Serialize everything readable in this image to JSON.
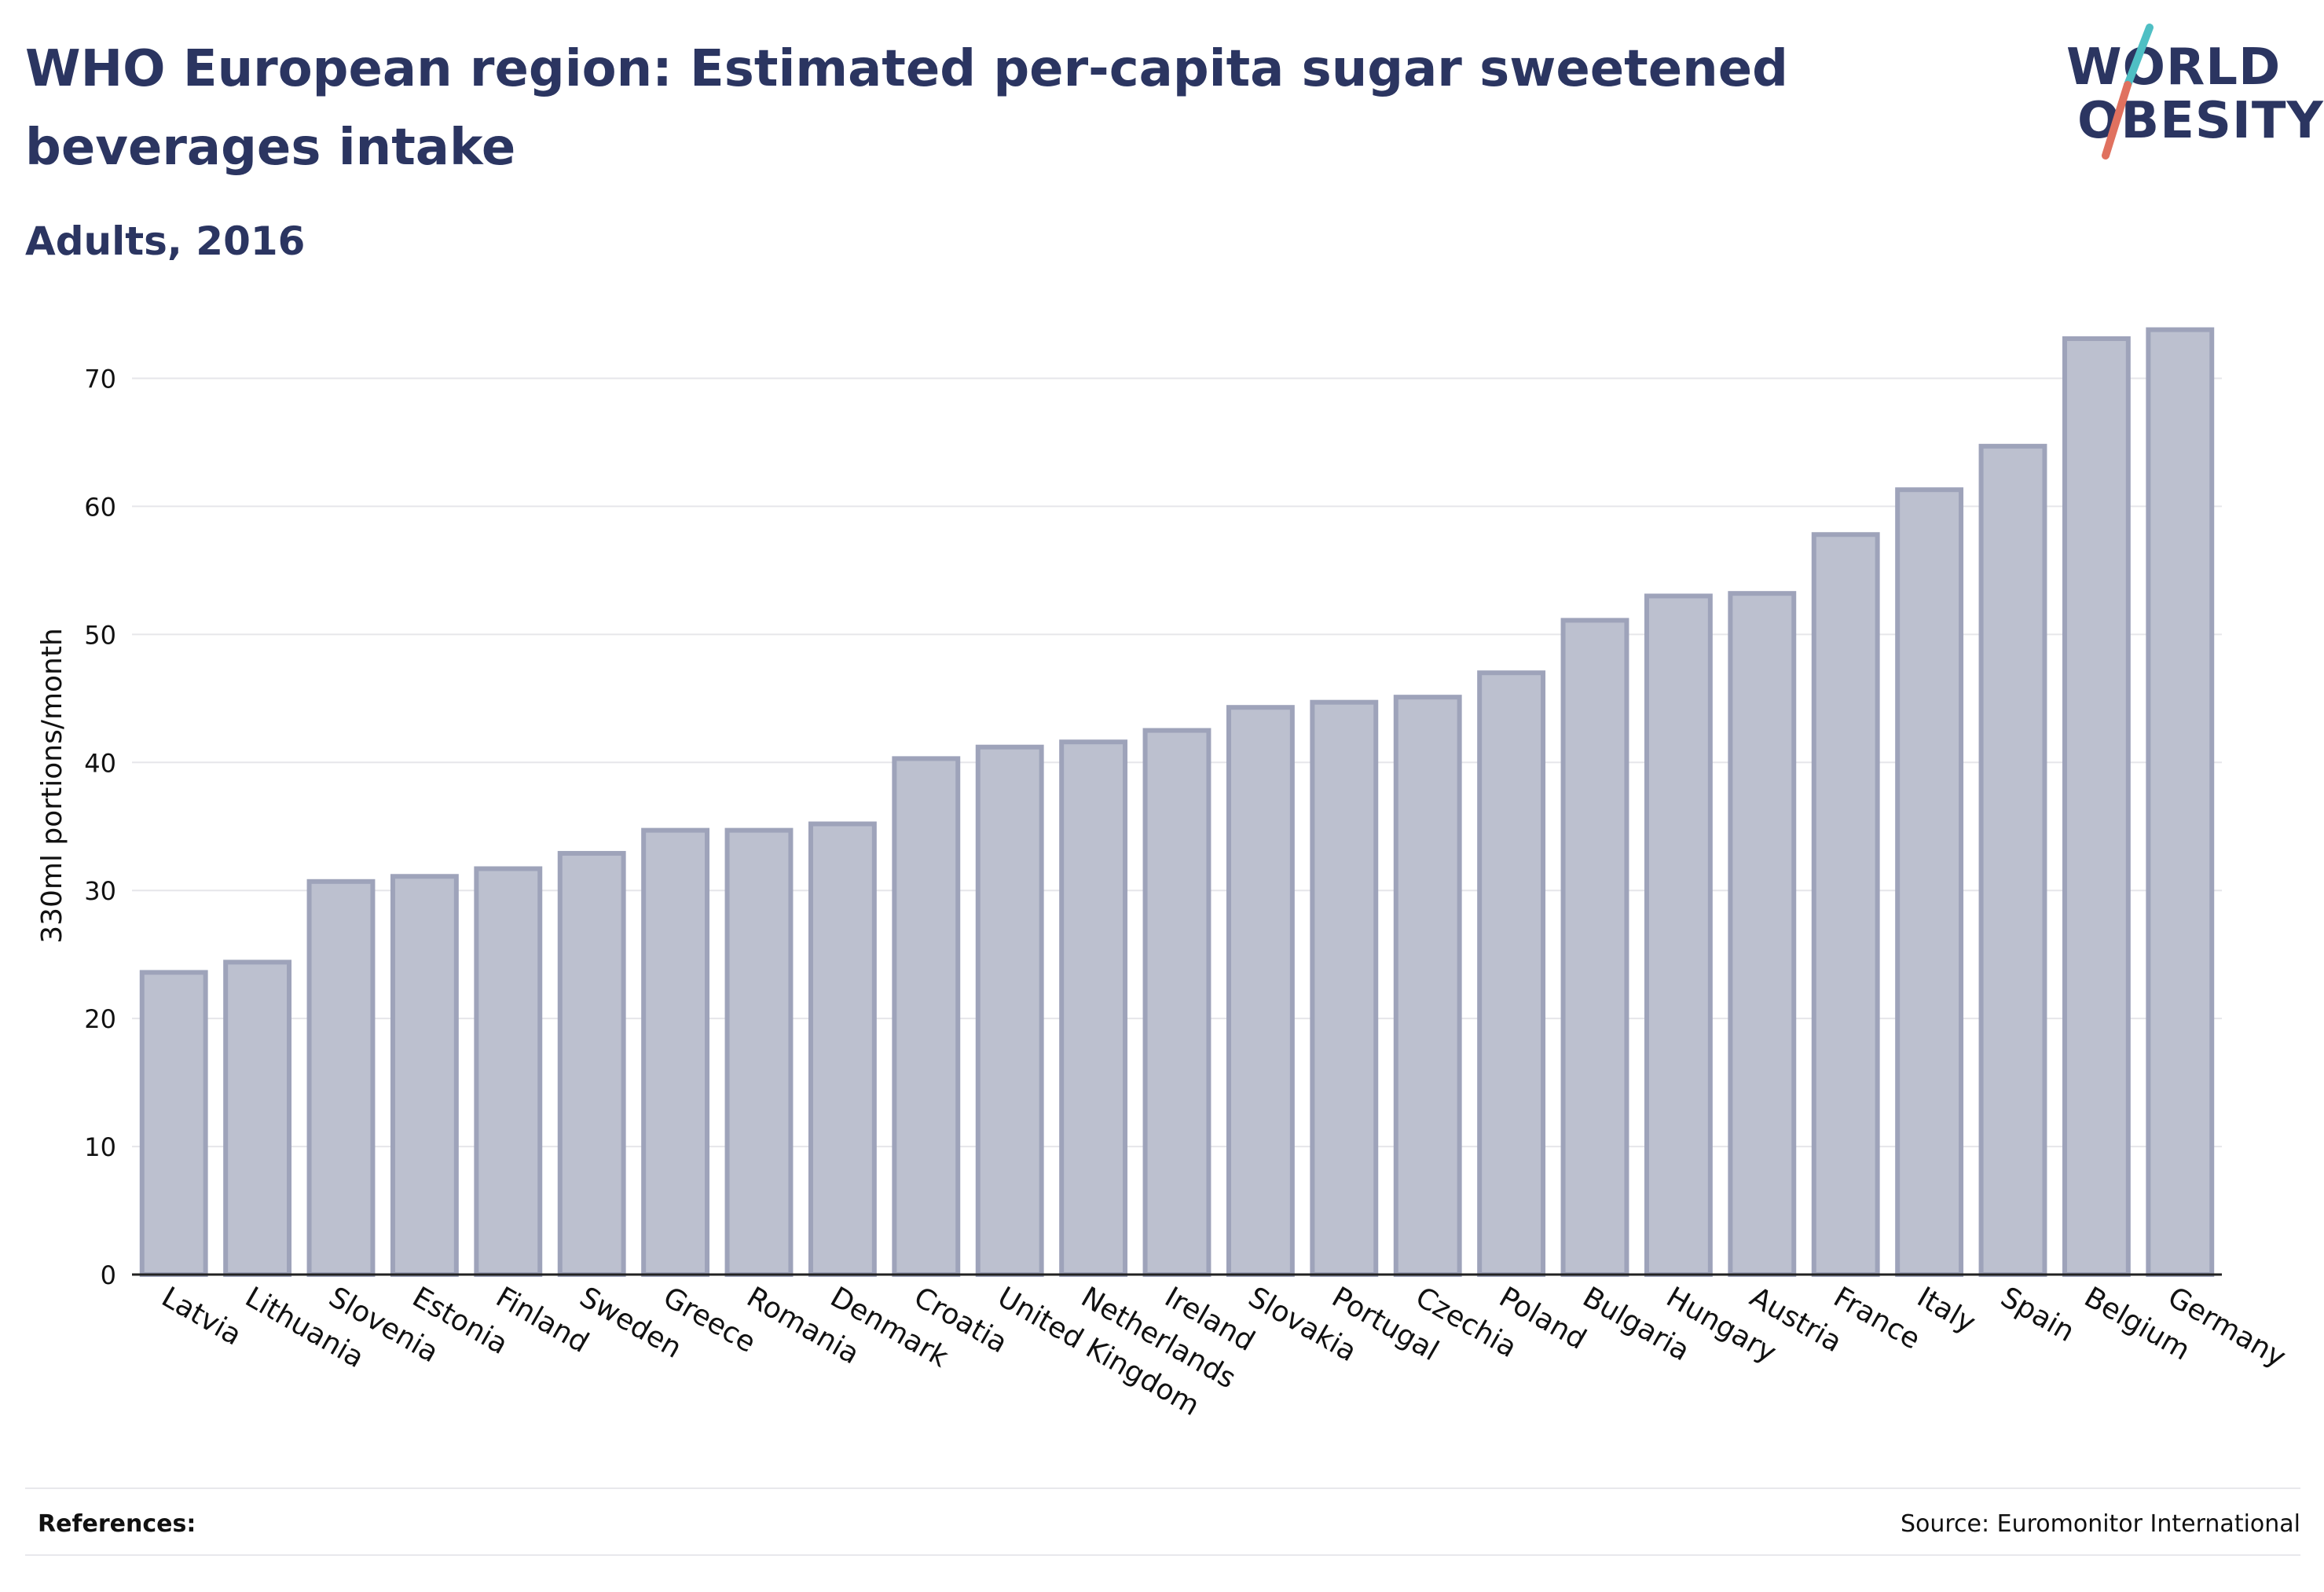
{
  "header": {
    "title": "WHO European region: Estimated per-capita sugar sweetened beverages intake",
    "subtitle": "Adults, 2016"
  },
  "logo": {
    "line1": "WORLD",
    "line2": "OBESITY",
    "slash_colors": [
      "#4fbfc4",
      "#e0715f"
    ]
  },
  "footer": {
    "references_label": "References:",
    "source": "Source: Euromonitor International"
  },
  "colors": {
    "bar_fill": "#bcc0cf",
    "bar_stroke": "#9ea3ba",
    "text": "#2b3561",
    "grid": "#e6e6ea"
  },
  "chart_data": {
    "type": "bar",
    "ylabel": "330ml portions/month",
    "ylim": [
      0,
      75
    ],
    "yticks": [
      0,
      10,
      20,
      30,
      40,
      50,
      60,
      70
    ],
    "grid": true,
    "categories": [
      "Latvia",
      "Lithuania",
      "Slovenia",
      "Estonia",
      "Finland",
      "Sweden",
      "Greece",
      "Romania",
      "Denmark",
      "Croatia",
      "United Kingdom",
      "Netherlands",
      "Ireland",
      "Slovakia",
      "Portugal",
      "Czechia",
      "Poland",
      "Bulgaria",
      "Hungary",
      "Austria",
      "France",
      "Italy",
      "Spain",
      "Belgium",
      "Germany"
    ],
    "values": [
      23.6,
      24.4,
      30.7,
      31.1,
      31.7,
      32.9,
      34.7,
      34.7,
      35.2,
      40.3,
      41.2,
      41.6,
      42.5,
      44.3,
      44.7,
      45.1,
      47.0,
      51.1,
      53.0,
      53.2,
      57.8,
      61.3,
      64.7,
      73.1,
      73.8
    ]
  }
}
